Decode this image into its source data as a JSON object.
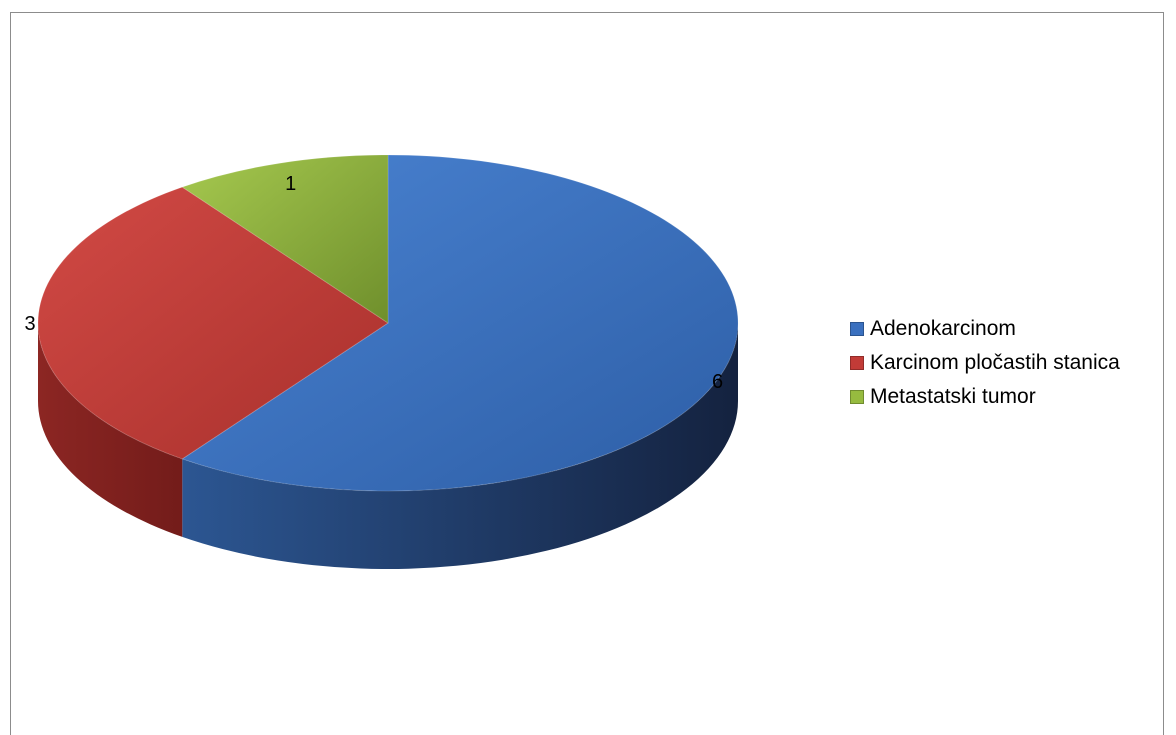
{
  "chart_data": {
    "type": "pie",
    "style": "3d",
    "categories": [
      "Adenokarcinom",
      "Karcinom pločastih stanica",
      "Metastatski tumor"
    ],
    "values": [
      6,
      3,
      1
    ],
    "data_labels": [
      "6",
      "3",
      "1"
    ],
    "colors": [
      "#3a70bf",
      "#c23b37",
      "#96bb3f"
    ],
    "legend_position": "right",
    "title": "",
    "grid": false
  }
}
